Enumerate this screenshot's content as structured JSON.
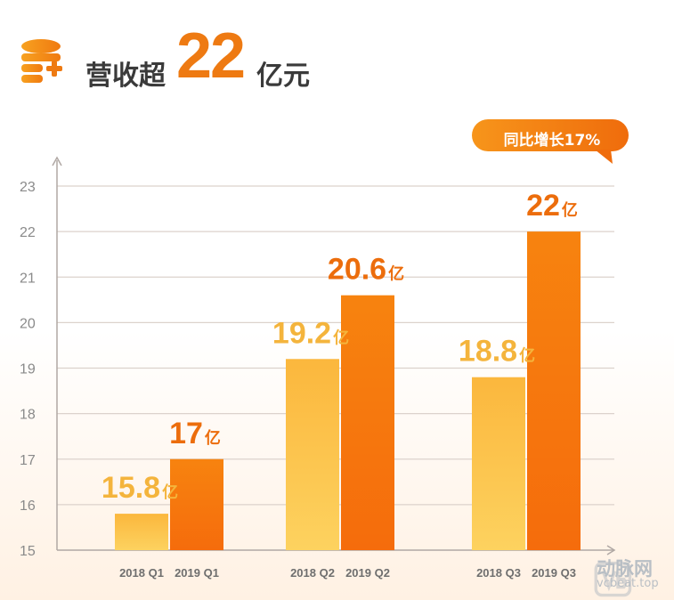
{
  "header": {
    "title_prefix": "营收超",
    "title_number": "22",
    "title_suffix": "亿元"
  },
  "callout": {
    "text": "同比增长17%"
  },
  "chart_data": {
    "type": "bar",
    "title": "营收超22亿元",
    "ylim": [
      15,
      23
    ],
    "yticks": [
      15,
      16,
      17,
      18,
      19,
      20,
      21,
      22,
      23
    ],
    "grid": true,
    "bars": [
      {
        "label": "2018 Q1",
        "value": 15.8,
        "data_label": "15.8",
        "unit": "亿",
        "color": "#fcc24e"
      },
      {
        "label": "2019 Q1",
        "value": 17,
        "data_label": "17",
        "unit": "亿",
        "color": "#f5780f"
      },
      {
        "label": "2018 Q2",
        "value": 19.2,
        "data_label": "19.2",
        "unit": "亿",
        "color": "#fcc24e"
      },
      {
        "label": "2019 Q2",
        "value": 20.6,
        "data_label": "20.6",
        "unit": "亿",
        "color": "#f5780f"
      },
      {
        "label": "2018 Q3",
        "value": 18.8,
        "data_label": "18.8",
        "unit": "亿",
        "color": "#fcc24e"
      },
      {
        "label": "2019 Q3",
        "value": 22,
        "data_label": "22",
        "unit": "亿",
        "color": "#f5780f"
      }
    ]
  },
  "colors": {
    "accent": "#ee7a12",
    "bar_2018": "#fcc24e",
    "bar_2019": "#f5780f",
    "label_2018": "#f4b43c",
    "label_2019": "#ec6d0c",
    "grid": "#dcd2cc"
  },
  "watermark": {
    "icon": "vb-logo-icon",
    "name_cn": "动脉网",
    "site": "vcbeat.top"
  }
}
